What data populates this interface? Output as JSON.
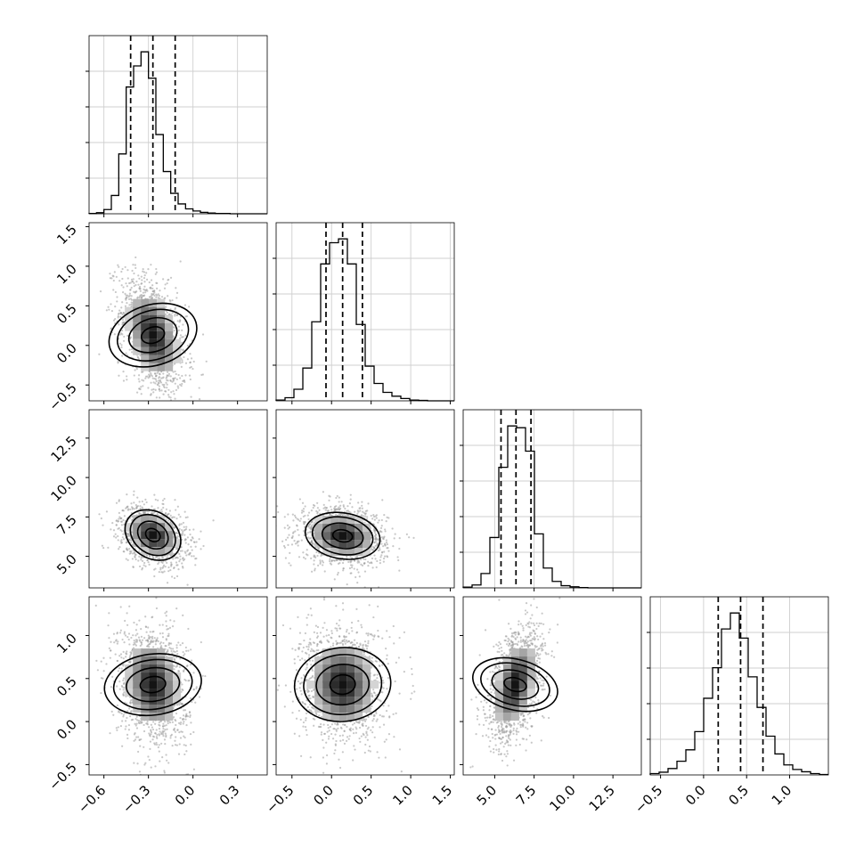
{
  "chart_data": {
    "type": "corner",
    "grid": true,
    "parameters": [
      {
        "range": [
          -0.7,
          0.5
        ],
        "ticks": [
          -0.6,
          -0.3,
          0.0,
          0.3
        ],
        "tick_labels": [
          "−0.6",
          "−0.3",
          "0.0",
          "0.3"
        ],
        "quantiles": [
          -0.42,
          -0.27,
          -0.12
        ],
        "hist": {
          "x0": -0.7,
          "dx": 0.05,
          "counts": [
            1,
            3,
            12,
            52,
            170,
            360,
            420,
            460,
            385,
            225,
            120,
            58,
            28,
            14,
            8,
            4,
            2,
            1,
            1,
            0,
            0,
            0,
            0,
            0
          ]
        }
      },
      {
        "range": [
          -0.7,
          1.55
        ],
        "ticks": [
          -0.5,
          0.0,
          0.5,
          1.0,
          1.5
        ],
        "tick_labels": [
          "−0.5",
          "0.0",
          "0.5",
          "1.0",
          "1.5"
        ],
        "quantiles": [
          -0.07,
          0.14,
          0.39
        ],
        "hist": {
          "x0": -0.7,
          "dx": 0.1125,
          "counts": [
            2,
            8,
            30,
            85,
            205,
            355,
            410,
            420,
            355,
            198,
            90,
            45,
            22,
            12,
            6,
            2,
            1,
            0,
            0,
            0
          ]
        }
      },
      {
        "range": [
          3.0,
          14.3
        ],
        "ticks": [
          5.0,
          7.5,
          10.0,
          12.5
        ],
        "tick_labels": [
          "5.0",
          "7.5",
          "10.0",
          "12.5"
        ],
        "quantiles": [
          5.4,
          6.35,
          7.3
        ],
        "hist": {
          "x0": 3.0,
          "dx": 0.565,
          "counts": [
            2,
            8,
            40,
            140,
            335,
            450,
            445,
            380,
            150,
            55,
            18,
            6,
            3,
            1,
            0,
            0,
            0,
            0,
            0,
            0
          ]
        }
      },
      {
        "range": [
          -0.62,
          1.45
        ],
        "ticks": [
          -0.5,
          0.0,
          0.5,
          1.0
        ],
        "tick_labels": [
          "−0.5",
          "0.0",
          "0.5",
          "1.0"
        ],
        "quantiles": [
          0.17,
          0.43,
          0.69
        ],
        "hist": {
          "x0": -0.62,
          "dx": 0.1035,
          "counts": [
            3,
            6,
            14,
            30,
            55,
            95,
            168,
            235,
            320,
            355,
            300,
            215,
            148,
            85,
            46,
            22,
            12,
            7,
            3,
            1
          ]
        }
      }
    ],
    "pairs": [
      {
        "i": 1,
        "j": 0,
        "center": [
          -0.27,
          0.13
        ],
        "spread": [
          0.09,
          0.3
        ],
        "rho": -0.4
      },
      {
        "i": 2,
        "j": 0,
        "center": [
          -0.27,
          6.35
        ],
        "spread": [
          0.09,
          0.75
        ],
        "rho": -0.3
      },
      {
        "i": 2,
        "j": 1,
        "center": [
          0.14,
          6.3
        ],
        "spread": [
          0.22,
          0.72
        ],
        "rho": -0.15
      },
      {
        "i": 3,
        "j": 0,
        "center": [
          -0.27,
          0.43
        ],
        "spread": [
          0.095,
          0.28
        ],
        "rho": -0.15
      },
      {
        "i": 3,
        "j": 1,
        "center": [
          0.14,
          0.43
        ],
        "spread": [
          0.22,
          0.27
        ],
        "rho": -0.05
      },
      {
        "i": 3,
        "j": 2,
        "center": [
          6.3,
          0.43
        ],
        "spread": [
          0.7,
          0.27
        ],
        "rho": 0.45
      }
    ]
  }
}
